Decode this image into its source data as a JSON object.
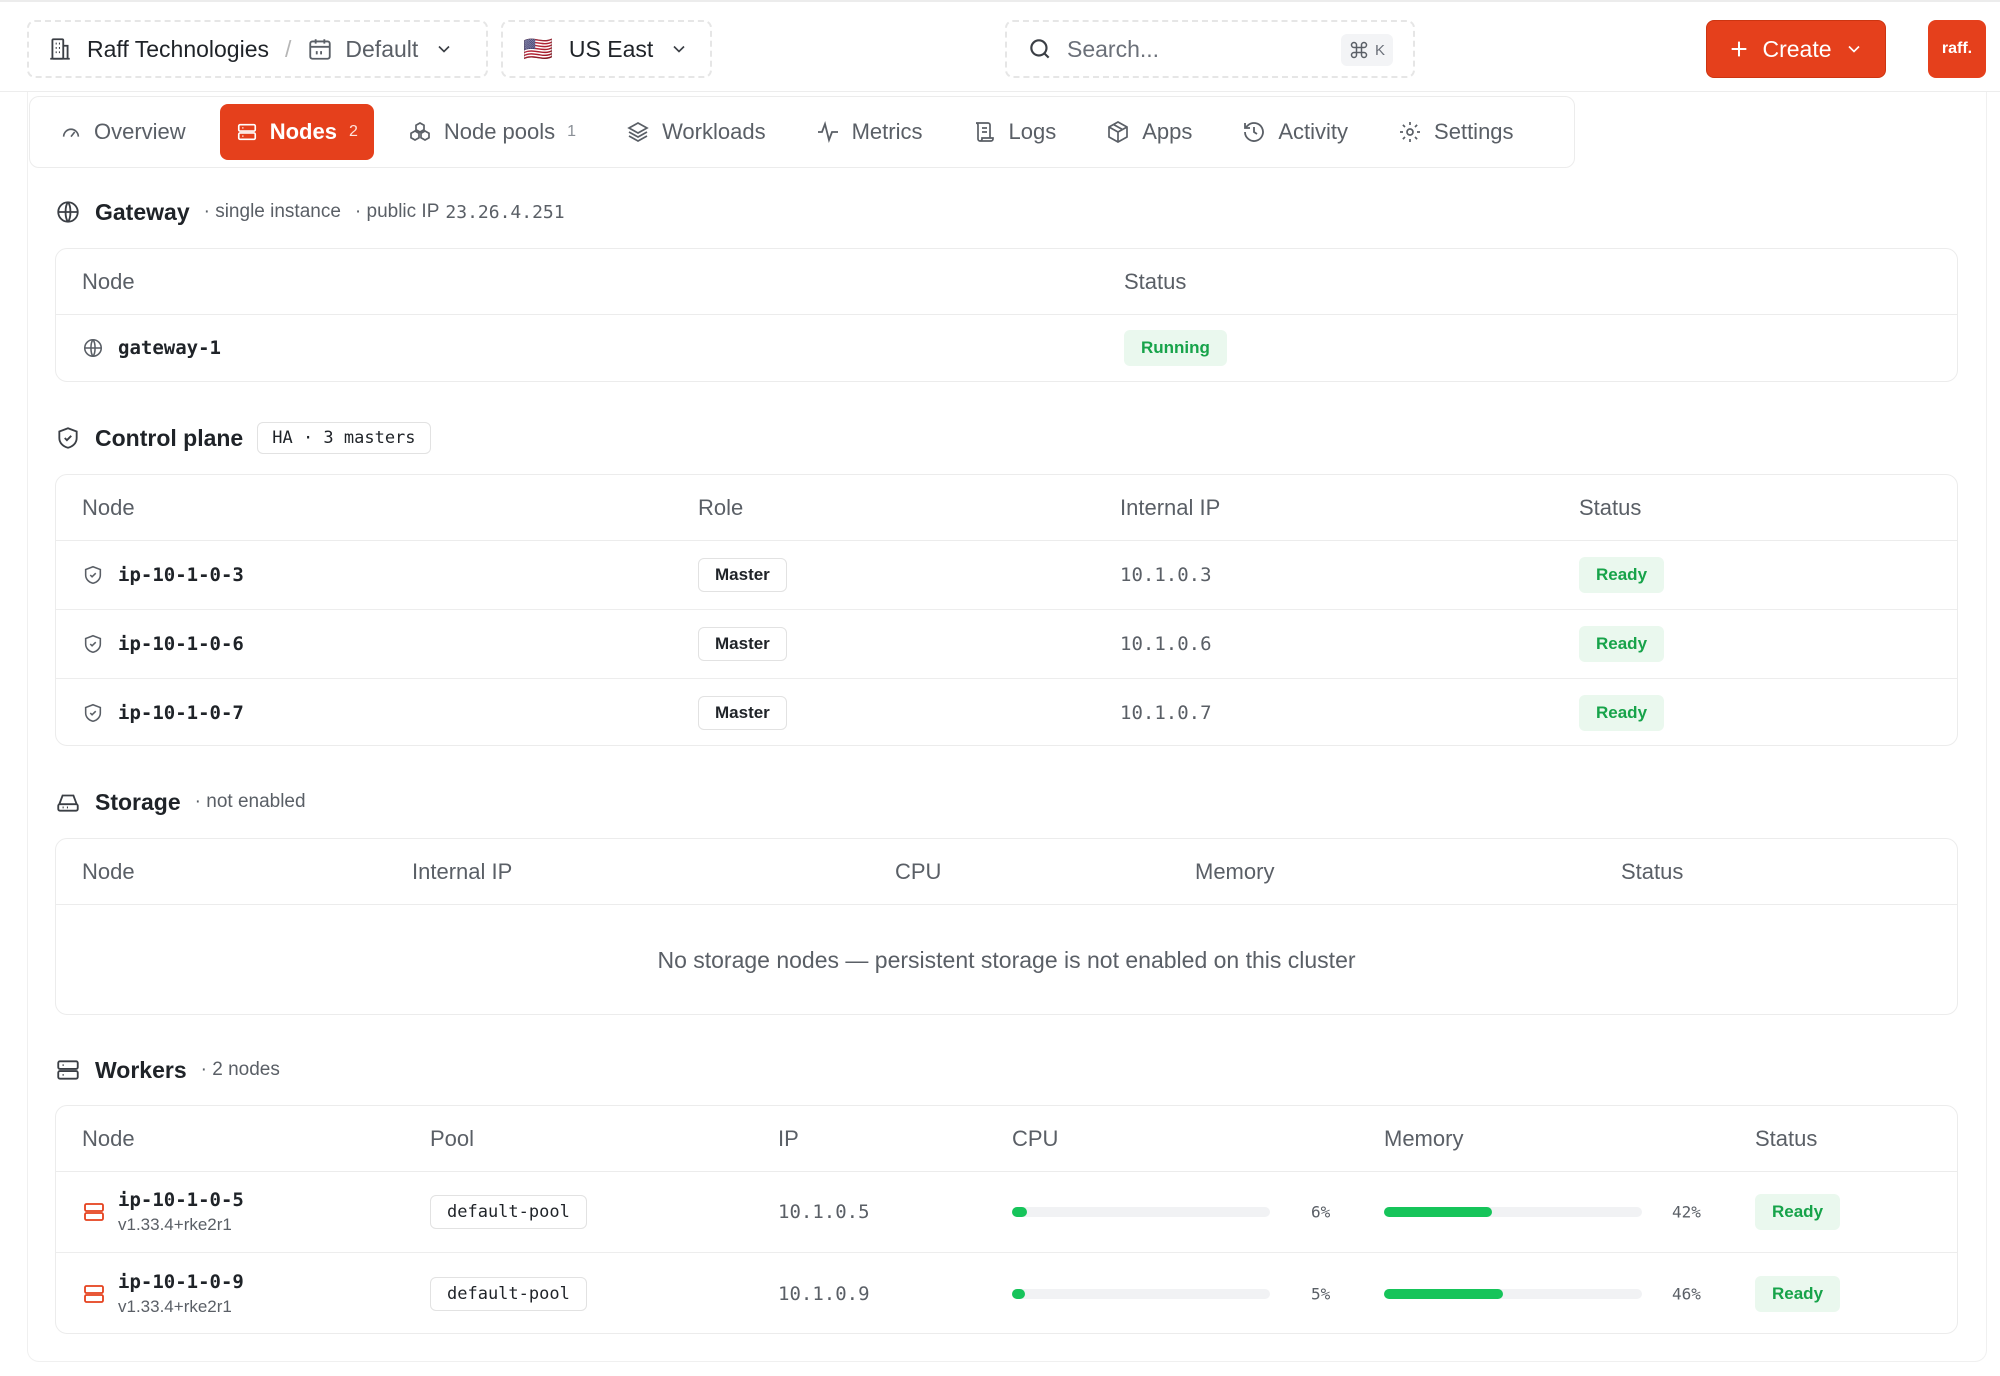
{
  "header": {
    "org": "Raff Technologies",
    "project": "Default",
    "region": "US East",
    "region_flag": "🇺🇸",
    "search_placeholder": "Search...",
    "search_shortcut_key": "K",
    "create_label": "Create",
    "avatar_text": "raff."
  },
  "tabs": [
    {
      "label": "Overview",
      "count": "",
      "icon": "gauge-icon"
    },
    {
      "label": "Nodes",
      "count": "2",
      "icon": "server-icon"
    },
    {
      "label": "Node pools",
      "count": "1",
      "icon": "boxes-icon"
    },
    {
      "label": "Workloads",
      "count": "",
      "icon": "layers-icon"
    },
    {
      "label": "Metrics",
      "count": "",
      "icon": "activity-icon"
    },
    {
      "label": "Logs",
      "count": "",
      "icon": "scroll-icon"
    },
    {
      "label": "Apps",
      "count": "",
      "icon": "package-icon"
    },
    {
      "label": "Activity",
      "count": "",
      "icon": "history-icon"
    },
    {
      "label": "Settings",
      "count": "",
      "icon": "gear-icon"
    }
  ],
  "gateway": {
    "title": "Gateway",
    "meta1": "· single instance",
    "meta2_label": "· public IP",
    "meta2_value": "23.26.4.251",
    "columns": [
      "Node",
      "Status"
    ],
    "rows": [
      {
        "node": "gateway-1",
        "status": "Running"
      }
    ]
  },
  "control_plane": {
    "title": "Control plane",
    "badge": "HA · 3 masters",
    "columns": [
      "Node",
      "Role",
      "Internal IP",
      "Status"
    ],
    "rows": [
      {
        "node": "ip-10-1-0-3",
        "role": "Master",
        "ip": "10.1.0.3",
        "status": "Ready"
      },
      {
        "node": "ip-10-1-0-6",
        "role": "Master",
        "ip": "10.1.0.6",
        "status": "Ready"
      },
      {
        "node": "ip-10-1-0-7",
        "role": "Master",
        "ip": "10.1.0.7",
        "status": "Ready"
      }
    ]
  },
  "storage": {
    "title": "Storage",
    "meta": "· not enabled",
    "columns": [
      "Node",
      "Internal IP",
      "CPU",
      "Memory",
      "Status"
    ],
    "empty": "No storage nodes — persistent storage is not enabled on this cluster"
  },
  "workers": {
    "title": "Workers",
    "meta": "· 2 nodes",
    "columns": [
      "Node",
      "Pool",
      "IP",
      "CPU",
      "Memory",
      "Status"
    ],
    "rows": [
      {
        "node": "ip-10-1-0-5",
        "version": "v1.33.4+rke2r1",
        "pool": "default-pool",
        "ip": "10.1.0.5",
        "cpu": 6,
        "cpu_label": "6%",
        "mem": 42,
        "mem_label": "42%",
        "status": "Ready"
      },
      {
        "node": "ip-10-1-0-9",
        "version": "v1.33.4+rke2r1",
        "pool": "default-pool",
        "ip": "10.1.0.9",
        "cpu": 5,
        "cpu_label": "5%",
        "mem": 46,
        "mem_label": "46%",
        "status": "Ready"
      }
    ]
  },
  "colors": {
    "accent": "#e5401c",
    "ready": "#17a34a",
    "bar": "#16c45a"
  }
}
